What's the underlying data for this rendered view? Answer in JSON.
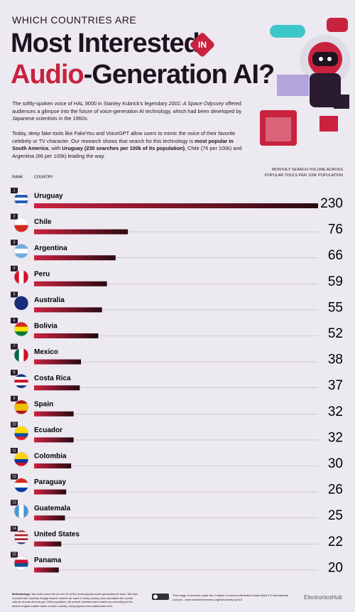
{
  "header": {
    "kicker": "WHICH COUNTRIES ARE",
    "title_line1": "Most Interested",
    "badge": "IN",
    "title_highlight": "Audio",
    "title_rest": "-Generation AI?"
  },
  "intro": [
    "The softly-spoken voice of HAL 9000 in Stanley Kubrick's legendary ",
    "2001: A Space Odyssey",
    " offered audiences a glimpse into the future of voice-generation AI technology, which had been developed by Japanese scientists in the 1960s."
  ],
  "findings": [
    "Today, deep fake tools like FakeYou and VoiceGPT allow users to mimic the voice of their favorite celebrity or TV character. Our research shows that search for this technology is ",
    "most popular in South America",
    ", with ",
    "Uruguay (230 searches per 100k of its population)",
    ", Chile (76 per 100k) and Argentina (66 per 100k) leading the way."
  ],
  "chart_data": {
    "type": "bar",
    "orientation": "horizontal",
    "rank_label": "RANK",
    "category_label": "COUNTRY",
    "value_label": "MONTHLY SEARCH VOLUME ACROSS POPULAR TOOLS PER 100K POPULATION",
    "ranks": [
      1,
      2,
      3,
      4,
      5,
      6,
      7,
      8,
      9,
      10,
      11,
      12,
      13,
      14,
      15
    ],
    "categories": [
      "Uruguay",
      "Chile",
      "Argentina",
      "Peru",
      "Australia",
      "Bolivia",
      "Mexico",
      "Costa Rica",
      "Spain",
      "Ecuador",
      "Colombia",
      "Paraguay",
      "Guatemala",
      "United States",
      "Panama"
    ],
    "values": [
      230,
      76,
      66,
      59,
      55,
      52,
      38,
      37,
      32,
      32,
      30,
      26,
      25,
      22,
      20
    ],
    "xlim": [
      0,
      230
    ],
    "colors": [
      "#c9223f",
      "#2a0a12"
    ]
  },
  "footer": {
    "methodology_title": "Methodology:",
    "methodology": " We built a seed list of over 20 of the most popular audio generation AI tools. We then recorded the monthly Google search volume for each in every country and calculated the overall volume across all tools per 100k population. All search volumes were scaled up according to the search engine market share in each country, using figures from statcounter.com.",
    "license": "This image is licensed under the Creative Commons Attribution-Share Alike 4.0 International Licence - www.creativecommons.org/licenses/by-sa/4.0",
    "brand": "ElectronicsHub"
  }
}
